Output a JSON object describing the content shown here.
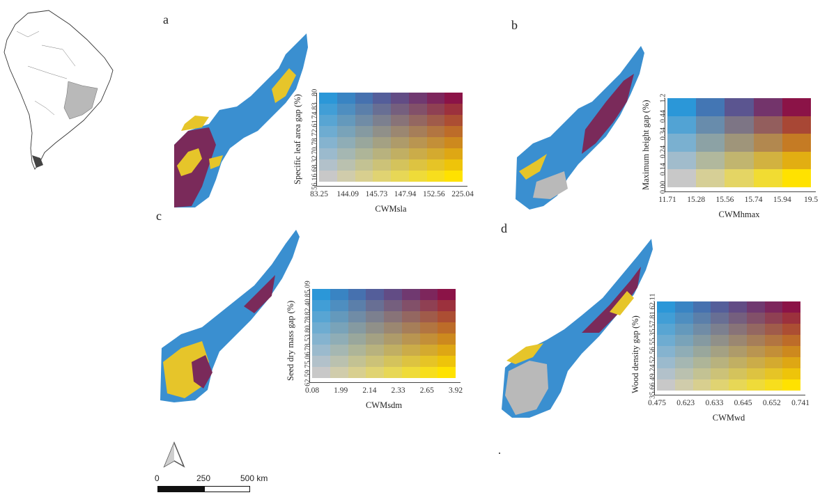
{
  "inset_map": {
    "label": ""
  },
  "panels": [
    {
      "letter": "a",
      "x_label": "CWMsla",
      "y_label": "Specific leaf area gap (%)",
      "x_ticks": [
        "83.25",
        "144.09",
        "145.73",
        "147.94",
        "152.56",
        "225.04"
      ],
      "y_ticks": [
        "56.16",
        "68.32",
        "70.78",
        "72.61",
        "74.83",
        "80"
      ],
      "grid_cols": 8,
      "grid_rows": 8
    },
    {
      "letter": "b",
      "x_label": "CWMhmax",
      "y_label": "Maximum height gap (%)",
      "x_ticks": [
        "11.71",
        "15.28",
        "15.56",
        "15.74",
        "15.94",
        "19.5"
      ],
      "y_ticks": [
        "0.00",
        "0.14",
        "0.24",
        "0.34",
        "0.44",
        "1.2"
      ],
      "grid_cols": 5,
      "grid_rows": 5
    },
    {
      "letter": "c",
      "x_label": "CWMsdm",
      "y_label": "Seed dry mass gap (%)",
      "x_ticks": [
        "0.08",
        "1.99",
        "2.14",
        "2.33",
        "2.65",
        "3.92"
      ],
      "y_ticks": [
        "62.59",
        "75.06",
        "78.53",
        "80.78",
        "82.40",
        "85.09"
      ],
      "grid_cols": 8,
      "grid_rows": 8
    },
    {
      "letter": "d",
      "x_label": "CWMwd",
      "y_label": "Wood density gap (%)",
      "x_ticks": [
        "0.475",
        "0.623",
        "0.633",
        "0.645",
        "0.652",
        "0.741"
      ],
      "y_ticks": [
        "35.66",
        "49.24",
        "52.56",
        "55.35",
        "57.81",
        "62.11"
      ],
      "grid_cols": 8,
      "grid_rows": 8
    }
  ],
  "scale_bar": {
    "labels": [
      "0",
      "250",
      "500 km"
    ]
  },
  "north_arrow": {
    "icon": "north-arrow-icon"
  },
  "colors": {
    "corner_bottom_left": "#c8c8c8",
    "corner_bottom_right": "#ffe200",
    "corner_top_left": "#2b97d8",
    "corner_top_right": "#8b1347",
    "map_blue": "#3a8fd0",
    "map_yellow": "#e6c52a",
    "map_purple": "#7a2a5a",
    "map_gray": "#b9b9b9"
  }
}
